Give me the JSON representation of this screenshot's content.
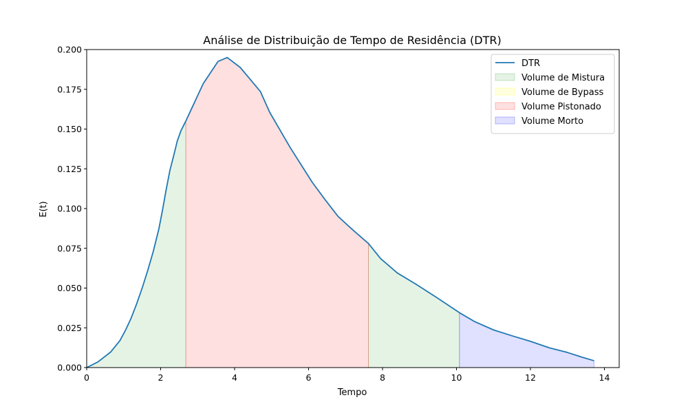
{
  "chart_data": {
    "type": "area",
    "title": "Análise de Distribuição de Tempo de Residência (DTR)",
    "xlabel": "Tempo",
    "ylabel": "E(t)",
    "xlim": [
      0,
      14.4
    ],
    "ylim": [
      0,
      0.2
    ],
    "xticks": [
      0,
      2,
      4,
      6,
      8,
      10,
      12,
      14
    ],
    "yticks": [
      0.0,
      0.025,
      0.05,
      0.075,
      0.1,
      0.125,
      0.15,
      0.175,
      0.2
    ],
    "ytick_labels": [
      "0.000",
      "0.025",
      "0.050",
      "0.075",
      "0.100",
      "0.125",
      "0.150",
      "0.175",
      "0.200"
    ],
    "grid": false,
    "legend_position": "upper right",
    "series": [
      {
        "name": "DTR",
        "color": "#1f77b4",
        "x": [
          0,
          0.3,
          0.65,
          0.9,
          1.05,
          1.2,
          1.35,
          1.5,
          1.65,
          1.8,
          1.95,
          2.05,
          2.15,
          2.25,
          2.35,
          2.45,
          2.55,
          2.68,
          2.85,
          3.0,
          3.15,
          3.35,
          3.55,
          3.8,
          4.15,
          4.45,
          4.7,
          4.95,
          5.2,
          5.5,
          5.8,
          6.1,
          6.45,
          6.8,
          7.2,
          7.62,
          7.95,
          8.4,
          8.9,
          9.5,
          10.08,
          10.5,
          11.0,
          11.5,
          12.0,
          12.5,
          13.0,
          13.4,
          13.72
        ],
        "y": [
          0.0,
          0.0035,
          0.0098,
          0.017,
          0.0235,
          0.031,
          0.04,
          0.05,
          0.061,
          0.073,
          0.087,
          0.099,
          0.112,
          0.124,
          0.133,
          0.1425,
          0.149,
          0.155,
          0.1635,
          0.171,
          0.1785,
          0.1855,
          0.1925,
          0.195,
          0.1888,
          0.1805,
          0.1735,
          0.1605,
          0.1505,
          0.1385,
          0.1275,
          0.1165,
          0.1055,
          0.095,
          0.0865,
          0.078,
          0.0685,
          0.0595,
          0.0525,
          0.0435,
          0.0345,
          0.0288,
          0.0237,
          0.02,
          0.0165,
          0.0125,
          0.0095,
          0.0065,
          0.0043
        ]
      }
    ],
    "regions": [
      {
        "name": "Volume de Mistura",
        "color": "#2ca02c",
        "opacity": 0.12,
        "ranges": [
          [
            0,
            2.68
          ],
          [
            7.62,
            10.08
          ]
        ]
      },
      {
        "name": "Volume de Bypass",
        "color": "#ffff00",
        "opacity": 0.12,
        "ranges": []
      },
      {
        "name": "Volume Pistonado",
        "color": "#ff0000",
        "opacity": 0.12,
        "ranges": [
          [
            2.68,
            7.62
          ]
        ]
      },
      {
        "name": "Volume Morto",
        "color": "#0000ff",
        "opacity": 0.12,
        "ranges": [
          [
            10.08,
            13.72
          ]
        ]
      }
    ]
  }
}
